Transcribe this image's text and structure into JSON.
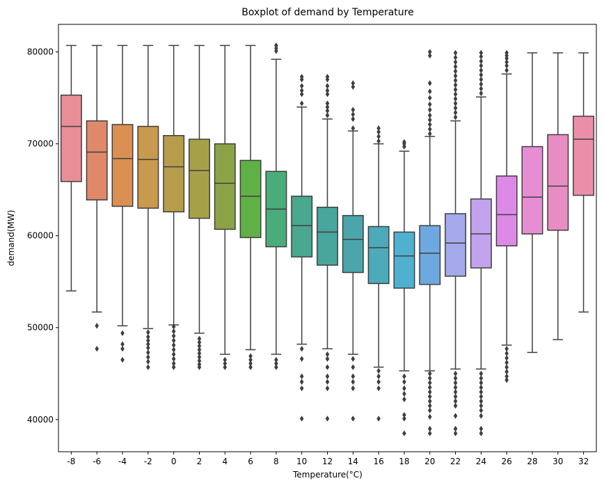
{
  "chart_data": {
    "type": "box",
    "title": "Boxplot of demand by Temperature",
    "xlabel": "Temperature(°C)",
    "ylabel": "demand(MW)",
    "ylim": [
      36500,
      83000
    ],
    "yticks": [
      40000,
      50000,
      60000,
      70000,
      80000
    ],
    "grid": false,
    "categories": [
      "-8",
      "-6",
      "-4",
      "-2",
      "0",
      "2",
      "4",
      "6",
      "8",
      "10",
      "12",
      "14",
      "16",
      "18",
      "20",
      "22",
      "24",
      "26",
      "28",
      "30",
      "32"
    ],
    "colors": [
      "#e98d96",
      "#e0896a",
      "#d99052",
      "#c89a4d",
      "#b69d4a",
      "#a6a148",
      "#8ba346",
      "#5fb046",
      "#4aac7a",
      "#4aa88f",
      "#49a69c",
      "#4aa6aa",
      "#4caab9",
      "#4fb0d0",
      "#6da8e0",
      "#a4a9ec",
      "#c3a2ee",
      "#dd8ae7",
      "#e68dd3",
      "#e78dc1",
      "#eb8fa8"
    ],
    "boxes": [
      {
        "category": "-8",
        "whisker_low": 54000,
        "q1": 65900,
        "median": 71900,
        "q3": 75300,
        "whisker_high": 80700,
        "outliers": []
      },
      {
        "category": "-6",
        "whisker_low": 51700,
        "q1": 63900,
        "median": 69100,
        "q3": 72500,
        "whisker_high": 80700,
        "outliers": [
          50200,
          47700
        ]
      },
      {
        "category": "-4",
        "whisker_low": 50200,
        "q1": 63200,
        "median": 68400,
        "q3": 72100,
        "whisker_high": 80700,
        "outliers": [
          49400,
          48200,
          47700,
          46500
        ]
      },
      {
        "category": "-2",
        "whisker_low": 49900,
        "q1": 63000,
        "median": 68300,
        "q3": 71900,
        "whisker_high": 80700,
        "outliers": [
          49500,
          49000,
          48600,
          48200,
          47800,
          47300,
          46800,
          46300,
          45700
        ]
      },
      {
        "category": "0",
        "whisker_low": 50300,
        "q1": 62600,
        "median": 67500,
        "q3": 70900,
        "whisker_high": 80700,
        "outliers": [
          50100,
          49600,
          49100,
          48600,
          48100,
          47600,
          47100,
          46600,
          46100,
          45700
        ]
      },
      {
        "category": "2",
        "whisker_low": 49400,
        "q1": 61900,
        "median": 67100,
        "q3": 70500,
        "whisker_high": 80700,
        "outliers": [
          48800,
          48400,
          48000,
          47600,
          47200,
          46800,
          46400,
          46000,
          45700
        ]
      },
      {
        "category": "4",
        "whisker_low": 47100,
        "q1": 60700,
        "median": 65700,
        "q3": 70000,
        "whisker_high": 80700,
        "outliers": [
          46500,
          46100,
          45700
        ]
      },
      {
        "category": "6",
        "whisker_low": 47600,
        "q1": 59800,
        "median": 64300,
        "q3": 68200,
        "whisker_high": 80700,
        "outliers": [
          46900,
          46500,
          46100,
          45700
        ]
      },
      {
        "category": "8",
        "whisker_low": 47100,
        "q1": 58800,
        "median": 62900,
        "q3": 67000,
        "whisker_high": 79200,
        "outliers": [
          80100,
          80400,
          80700,
          46500,
          46100,
          45700
        ]
      },
      {
        "category": "10",
        "whisker_low": 48200,
        "q1": 57700,
        "median": 61100,
        "q3": 64300,
        "whisker_high": 74000,
        "outliers": [
          74400,
          75400,
          75800,
          76300,
          77000,
          77300,
          47700,
          46600,
          44700,
          44100,
          43400,
          40100
        ]
      },
      {
        "category": "12",
        "whisker_low": 47700,
        "q1": 56800,
        "median": 60400,
        "q3": 63100,
        "whisker_high": 72700,
        "outliers": [
          73100,
          73600,
          74000,
          74400,
          75400,
          75800,
          76300,
          77000,
          77300,
          47100,
          46600,
          45700,
          44700,
          44100,
          43400,
          40100
        ]
      },
      {
        "category": "14",
        "whisker_low": 47100,
        "q1": 56000,
        "median": 59600,
        "q3": 62200,
        "whisker_high": 71400,
        "outliers": [
          71700,
          72700,
          73200,
          73700,
          76200,
          76600,
          46600,
          45700,
          44700,
          44100,
          43400,
          40100
        ]
      },
      {
        "category": "16",
        "whisker_low": 45700,
        "q1": 54800,
        "median": 58700,
        "q3": 61000,
        "whisker_high": 70000,
        "outliers": [
          70300,
          70800,
          71300,
          71700,
          45300,
          44700,
          44100,
          43400,
          40100
        ]
      },
      {
        "category": "18",
        "whisker_low": 45300,
        "q1": 54300,
        "median": 57800,
        "q3": 60400,
        "whisker_high": 69200,
        "outliers": [
          69700,
          70000,
          70200,
          44700,
          44100,
          43400,
          42800,
          42200,
          40500,
          40100,
          38500
        ]
      },
      {
        "category": "20",
        "whisker_low": 45300,
        "q1": 54700,
        "median": 58100,
        "q3": 61100,
        "whisker_high": 70800,
        "outliers": [
          71100,
          71600,
          72100,
          72600,
          73100,
          73700,
          74300,
          75000,
          75700,
          76600,
          79600,
          80000,
          45000,
          44500,
          44000,
          43500,
          43000,
          42500,
          42000,
          41500,
          41000,
          40300,
          39000,
          38500
        ]
      },
      {
        "category": "22",
        "whisker_low": 45500,
        "q1": 55600,
        "median": 59200,
        "q3": 62400,
        "whisker_high": 72500,
        "outliers": [
          72900,
          73400,
          73900,
          74400,
          74900,
          75400,
          75900,
          76400,
          76900,
          77400,
          77900,
          78400,
          78900,
          79400,
          79900,
          45000,
          44500,
          44000,
          43500,
          43000,
          42500,
          42000,
          41500,
          40400,
          39000,
          38500
        ]
      },
      {
        "category": "24",
        "whisker_low": 45500,
        "q1": 56500,
        "median": 60200,
        "q3": 64000,
        "whisker_high": 75100,
        "outliers": [
          75500,
          76000,
          76500,
          77000,
          77500,
          78000,
          78500,
          79000,
          79500,
          79900,
          45000,
          44500,
          44000,
          43500,
          43000,
          42500,
          42000,
          41500,
          41000,
          40400,
          39000,
          38500
        ]
      },
      {
        "category": "26",
        "whisker_low": 48100,
        "q1": 58900,
        "median": 62300,
        "q3": 66500,
        "whisker_high": 77600,
        "outliers": [
          78000,
          78500,
          78900,
          79300,
          79600,
          79900,
          47700,
          47200,
          46700,
          46200,
          45700,
          45200,
          44700,
          44300
        ]
      },
      {
        "category": "28",
        "whisker_low": 47300,
        "q1": 60200,
        "median": 64200,
        "q3": 69700,
        "whisker_high": 79900,
        "outliers": []
      },
      {
        "category": "30",
        "whisker_low": 48700,
        "q1": 60600,
        "median": 65400,
        "q3": 71000,
        "whisker_high": 79900,
        "outliers": []
      },
      {
        "category": "32",
        "whisker_low": 51700,
        "q1": 64400,
        "median": 70500,
        "q3": 73000,
        "whisker_high": 79900,
        "outliers": []
      }
    ]
  }
}
